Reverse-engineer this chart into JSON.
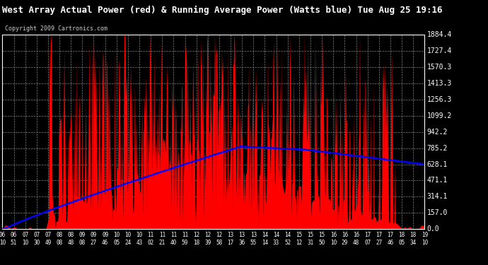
{
  "title": "West Array Actual Power (red) & Running Average Power (Watts blue) Tue Aug 25 19:16",
  "copyright": "Copyright 2009 Cartronics.com",
  "ylabel_values": [
    0.0,
    157.0,
    314.1,
    471.1,
    628.1,
    785.2,
    942.2,
    1099.2,
    1256.3,
    1413.3,
    1570.3,
    1727.4,
    1884.4
  ],
  "x_labels": [
    "06:10",
    "06:51",
    "07:10",
    "07:30",
    "07:49",
    "08:08",
    "08:48",
    "09:08",
    "09:27",
    "09:46",
    "10:05",
    "10:24",
    "10:43",
    "11:02",
    "11:21",
    "11:40",
    "11:59",
    "12:18",
    "12:39",
    "12:58",
    "13:17",
    "13:36",
    "13:55",
    "14:14",
    "14:33",
    "14:52",
    "15:12",
    "15:31",
    "15:50",
    "16:10",
    "16:29",
    "16:48",
    "17:07",
    "17:27",
    "17:46",
    "18:05",
    "18:34",
    "19:10"
  ],
  "bg_color": "#000000",
  "plot_bg_color": "#000000",
  "title_color": "#ffffff",
  "grid_color": "#808080",
  "red_color": "#ff0000",
  "blue_color": "#0000ff",
  "axis_label_color": "#ffffff",
  "tick_label_color": "#ffffff",
  "ymax": 1884.4,
  "ymin": 0.0,
  "title_fontsize": 9,
  "copyright_fontsize": 6,
  "ylabel_fontsize": 7,
  "xlabel_fontsize": 5.5
}
